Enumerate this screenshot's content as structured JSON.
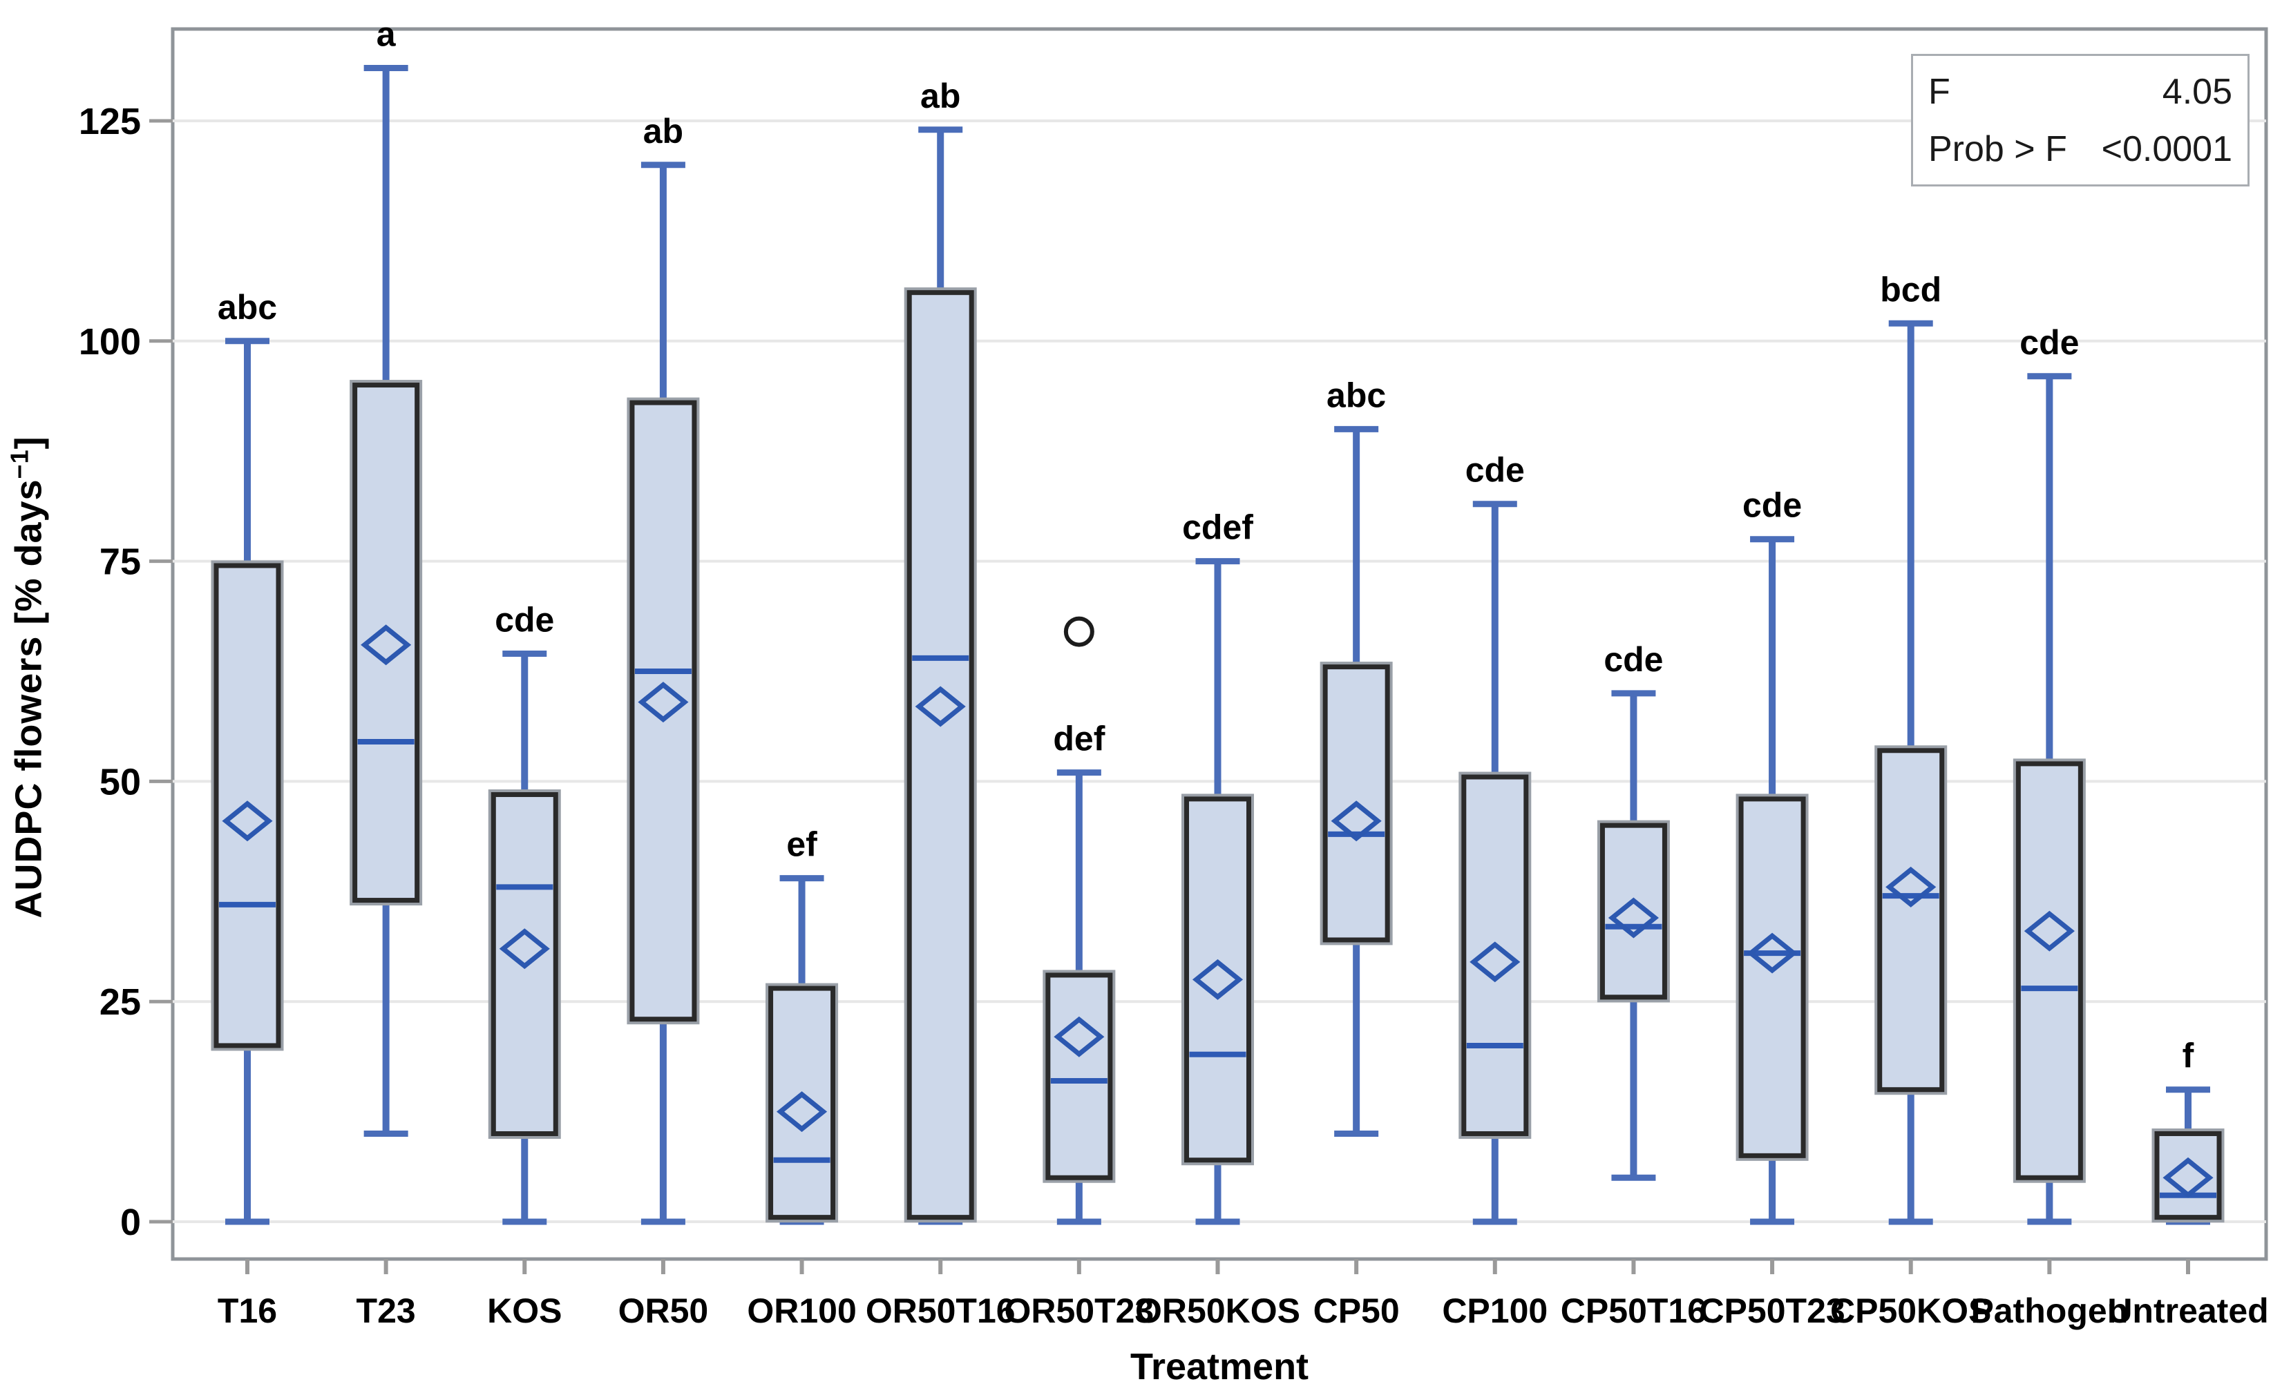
{
  "chart_data": {
    "type": "boxplot",
    "title": "",
    "xlabel": "Treatment",
    "ylabel_prefix": "AUDPC flowers [% days",
    "ylabel_sup": "−1",
    "ylabel_suffix": "]",
    "ylabel_full": "AUDPC flowers [% days⁻¹]",
    "y_ticks": [
      0,
      25,
      50,
      75,
      100,
      125
    ],
    "ylim": [
      0,
      137
    ],
    "grid": "horizontal",
    "legend_position": "none",
    "categories": [
      "T16",
      "T23",
      "KOS",
      "OR50",
      "OR100",
      "OR50T16",
      "OR50T23",
      "OR50KOS",
      "CP50",
      "CP100",
      "CP50T16",
      "CP50T23",
      "CP50KOS",
      "Pathogen",
      "Untreated"
    ],
    "series": [
      {
        "label": "T16",
        "letter": "abc",
        "min": 0,
        "q1": 20,
        "median": 36,
        "q3": 74.5,
        "max": 100,
        "mean": 45.5,
        "outliers": []
      },
      {
        "label": "T23",
        "letter": "a",
        "min": 10,
        "q1": 36.5,
        "median": 54.5,
        "q3": 95,
        "max": 131,
        "mean": 65.5,
        "outliers": []
      },
      {
        "label": "KOS",
        "letter": "cde",
        "min": 0,
        "q1": 10,
        "median": 38,
        "q3": 48.5,
        "max": 64.5,
        "mean": 31,
        "outliers": []
      },
      {
        "label": "OR50",
        "letter": "ab",
        "min": 0,
        "q1": 23,
        "median": 62.5,
        "q3": 93,
        "max": 120,
        "mean": 59,
        "outliers": []
      },
      {
        "label": "OR100",
        "letter": "ef",
        "min": 0,
        "q1": 0.5,
        "median": 7,
        "q3": 26.5,
        "max": 39,
        "mean": 12.5,
        "outliers": []
      },
      {
        "label": "OR50T16",
        "letter": "ab",
        "min": 0,
        "q1": 0.5,
        "median": 64,
        "q3": 105.5,
        "max": 124,
        "mean": 58.5,
        "outliers": []
      },
      {
        "label": "OR50T23",
        "letter": "def",
        "min": 0,
        "q1": 5,
        "median": 16,
        "q3": 28,
        "max": 51,
        "mean": 21,
        "outliers": [
          67
        ]
      },
      {
        "label": "OR50KOS",
        "letter": "cdef",
        "min": 0,
        "q1": 7,
        "median": 19,
        "q3": 48,
        "max": 75,
        "mean": 27.5,
        "outliers": []
      },
      {
        "label": "CP50",
        "letter": "abc",
        "min": 10,
        "q1": 32,
        "median": 44,
        "q3": 63,
        "max": 90,
        "mean": 45.5,
        "outliers": []
      },
      {
        "label": "CP100",
        "letter": "cde",
        "min": 0,
        "q1": 10,
        "median": 20,
        "q3": 50.5,
        "max": 81.5,
        "mean": 29.5,
        "outliers": []
      },
      {
        "label": "CP50T16",
        "letter": "cde",
        "min": 5,
        "q1": 25.5,
        "median": 33.5,
        "q3": 45,
        "max": 60,
        "mean": 34.5,
        "outliers": []
      },
      {
        "label": "CP50T23",
        "letter": "cde",
        "min": 0,
        "q1": 7.5,
        "median": 30.5,
        "q3": 48,
        "max": 77.5,
        "mean": 30.5,
        "outliers": []
      },
      {
        "label": "CP50KOS",
        "letter": "bcd",
        "min": 0,
        "q1": 15,
        "median": 37,
        "q3": 53.5,
        "max": 102,
        "mean": 38,
        "outliers": []
      },
      {
        "label": "Pathogen",
        "letter": "cde",
        "min": 0,
        "q1": 5,
        "median": 26.5,
        "q3": 52,
        "max": 96,
        "mean": 33,
        "outliers": []
      },
      {
        "label": "Untreated",
        "letter": "f",
        "min": 0,
        "q1": 0.5,
        "median": 3,
        "q3": 10,
        "max": 15,
        "mean": 5,
        "outliers": []
      }
    ]
  },
  "stats_box": {
    "rows": [
      {
        "label": "F",
        "value": "4.05"
      },
      {
        "label": "Prob > F",
        "value": "<0.0001"
      }
    ]
  },
  "colors": {
    "box_fill": "#cdd8ea",
    "box_stroke": "#2a2a2a",
    "whisker": "#4a6db9",
    "median": "#2e5ab5",
    "mean_diamond": "#2c58b0",
    "outlier": "#1c1c1c",
    "gridline": "#e7e7e7",
    "plot_border": "#8f9499",
    "tick": "#9a9a9a",
    "text": "#000000"
  }
}
